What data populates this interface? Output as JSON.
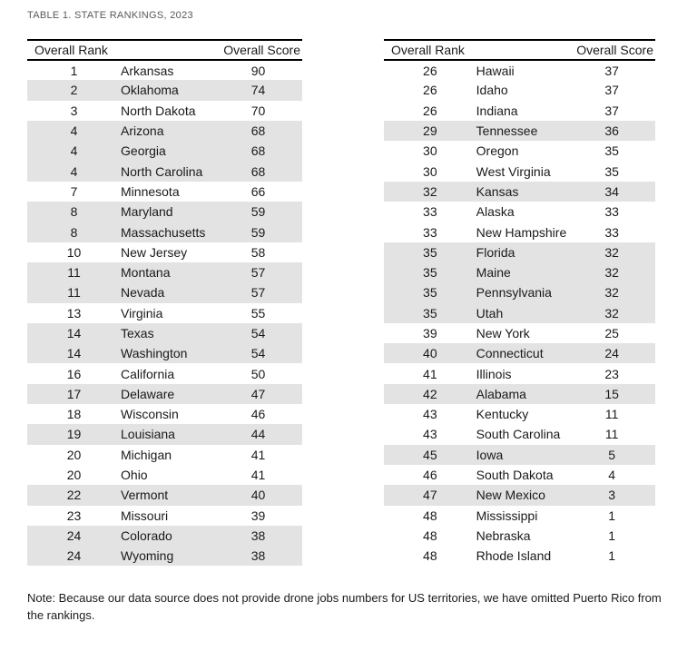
{
  "title": "TABLE 1. STATE RANKINGS, 2023",
  "tables": [
    {
      "name": "left",
      "headers": {
        "rank": "Overall Rank",
        "score": "Overall Score"
      },
      "rows": [
        {
          "rank": "1",
          "state": "Arkansas",
          "score": "90"
        },
        {
          "rank": "2",
          "state": "Oklahoma",
          "score": "74"
        },
        {
          "rank": "3",
          "state": "North Dakota",
          "score": "70"
        },
        {
          "rank": "4",
          "state": "Arizona",
          "score": "68"
        },
        {
          "rank": "4",
          "state": "Georgia",
          "score": "68"
        },
        {
          "rank": "4",
          "state": "North Carolina",
          "score": "68"
        },
        {
          "rank": "7",
          "state": "Minnesota",
          "score": "66"
        },
        {
          "rank": "8",
          "state": "Maryland",
          "score": "59"
        },
        {
          "rank": "8",
          "state": "Massachusetts",
          "score": "59"
        },
        {
          "rank": "10",
          "state": "New Jersey",
          "score": "58"
        },
        {
          "rank": "11",
          "state": "Montana",
          "score": "57"
        },
        {
          "rank": "11",
          "state": "Nevada",
          "score": "57"
        },
        {
          "rank": "13",
          "state": "Virginia",
          "score": "55"
        },
        {
          "rank": "14",
          "state": "Texas",
          "score": "54"
        },
        {
          "rank": "14",
          "state": "Washington",
          "score": "54"
        },
        {
          "rank": "16",
          "state": "California",
          "score": "50"
        },
        {
          "rank": "17",
          "state": "Delaware",
          "score": "47"
        },
        {
          "rank": "18",
          "state": "Wisconsin",
          "score": "46"
        },
        {
          "rank": "19",
          "state": "Louisiana",
          "score": "44"
        },
        {
          "rank": "20",
          "state": "Michigan",
          "score": "41"
        },
        {
          "rank": "20",
          "state": "Ohio",
          "score": "41"
        },
        {
          "rank": "22",
          "state": "Vermont",
          "score": "40"
        },
        {
          "rank": "23",
          "state": "Missouri",
          "score": "39"
        },
        {
          "rank": "24",
          "state": "Colorado",
          "score": "38"
        },
        {
          "rank": "24",
          "state": "Wyoming",
          "score": "38"
        }
      ]
    },
    {
      "name": "right",
      "headers": {
        "rank": "Overall Rank",
        "score": "Overall Score"
      },
      "rows": [
        {
          "rank": "26",
          "state": "Hawaii",
          "score": "37"
        },
        {
          "rank": "26",
          "state": "Idaho",
          "score": "37"
        },
        {
          "rank": "26",
          "state": "Indiana",
          "score": "37"
        },
        {
          "rank": "29",
          "state": "Tennessee",
          "score": "36"
        },
        {
          "rank": "30",
          "state": "Oregon",
          "score": "35"
        },
        {
          "rank": "30",
          "state": "West Virginia",
          "score": "35"
        },
        {
          "rank": "32",
          "state": "Kansas",
          "score": "34"
        },
        {
          "rank": "33",
          "state": "Alaska",
          "score": "33"
        },
        {
          "rank": "33",
          "state": "New Hampshire",
          "score": "33"
        },
        {
          "rank": "35",
          "state": "Florida",
          "score": "32"
        },
        {
          "rank": "35",
          "state": "Maine",
          "score": "32"
        },
        {
          "rank": "35",
          "state": "Pennsylvania",
          "score": "32"
        },
        {
          "rank": "35",
          "state": "Utah",
          "score": "32"
        },
        {
          "rank": "39",
          "state": "New York",
          "score": "25"
        },
        {
          "rank": "40",
          "state": "Connecticut",
          "score": "24"
        },
        {
          "rank": "41",
          "state": "Illinois",
          "score": "23"
        },
        {
          "rank": "42",
          "state": "Alabama",
          "score": "15"
        },
        {
          "rank": "43",
          "state": "Kentucky",
          "score": "11"
        },
        {
          "rank": "43",
          "state": "South Carolina",
          "score": "11"
        },
        {
          "rank": "45",
          "state": "Iowa",
          "score": "5"
        },
        {
          "rank": "46",
          "state": "South Dakota",
          "score": "4"
        },
        {
          "rank": "47",
          "state": "New Mexico",
          "score": "3"
        },
        {
          "rank": "48",
          "state": "Mississippi",
          "score": "1"
        },
        {
          "rank": "48",
          "state": "Nebraska",
          "score": "1"
        },
        {
          "rank": "48",
          "state": "Rhode Island",
          "score": "1"
        }
      ]
    }
  ],
  "note": "Note: Because our data source does not provide drone jobs numbers for US territories, we have omitted Puerto Rico from the rankings.",
  "colors": {
    "row_shade": "#e3e3e3",
    "title_text": "#595959",
    "body_text": "#1a1a1a",
    "rule": "#000000"
  }
}
